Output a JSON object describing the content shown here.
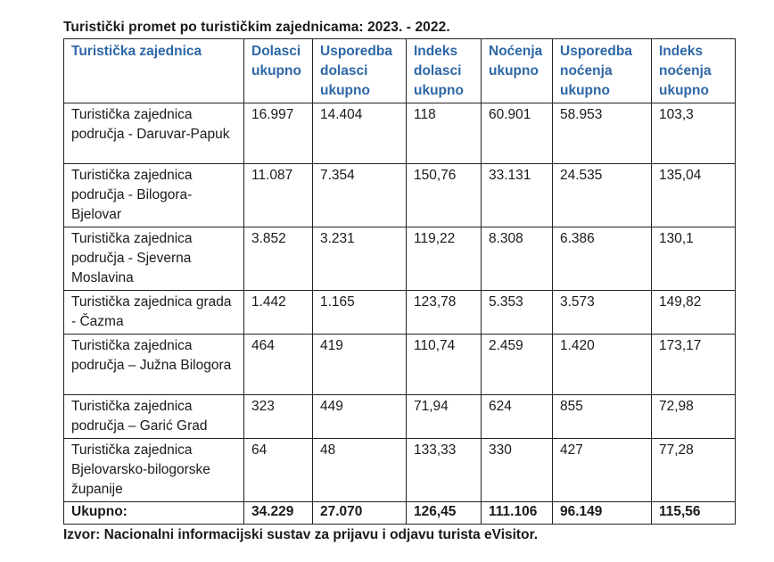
{
  "title": "Turistički promet po turističkim zajednicama: 2023. - 2022.",
  "table": {
    "headers": {
      "zajednica": "Turistička zajednica",
      "dolasci": "Dolasci ukupno",
      "usp_dolasci": "Usporedba dolasci ukupno",
      "idx_dolasci": "Indeks dolasci ukupno",
      "nocenja": "Noćenja ukupno",
      "usp_nocenja": "Usporedba noćenja ukupno",
      "idx_nocenja": "Indeks noćenja ukupno"
    },
    "rows": [
      {
        "name": "Turistička zajednica područja - Daruvar-Papuk",
        "dolasci": "16.997",
        "usp_dolasci": "14.404",
        "idx_dolasci": "118",
        "nocenja": "60.901",
        "usp_nocenja": "58.953",
        "idx_nocenja": "103,3"
      },
      {
        "name": "Turistička zajednica područja - Bilogora-Bjelovar",
        "dolasci": "11.087",
        "usp_dolasci": "7.354",
        "idx_dolasci": "150,76",
        "nocenja": "33.131",
        "usp_nocenja": "24.535",
        "idx_nocenja": "135,04"
      },
      {
        "name": "Turistička zajednica područja - Sjeverna Moslavina",
        "dolasci": "3.852",
        "usp_dolasci": "3.231",
        "idx_dolasci": "119,22",
        "nocenja": "8.308",
        "usp_nocenja": "6.386",
        "idx_nocenja": "130,1"
      },
      {
        "name": "Turistička zajednica grada - Čazma",
        "dolasci": "1.442",
        "usp_dolasci": "1.165",
        "idx_dolasci": "123,78",
        "nocenja": "5.353",
        "usp_nocenja": "3.573",
        "idx_nocenja": "149,82"
      },
      {
        "name": "Turistička zajednica područja – Južna Bilogora",
        "dolasci": "464",
        "usp_dolasci": "419",
        "idx_dolasci": "110,74",
        "nocenja": "2.459",
        "usp_nocenja": "1.420",
        "idx_nocenja": "173,17"
      },
      {
        "name": "Turistička zajednica područja – Garić Grad",
        "dolasci": "323",
        "usp_dolasci": "449",
        "idx_dolasci": "71,94",
        "nocenja": "624",
        "usp_nocenja": "855",
        "idx_nocenja": "72,98"
      },
      {
        "name": "Turistička zajednica Bjelovarsko-bilogorske županije",
        "dolasci": "64",
        "usp_dolasci": "48",
        "idx_dolasci": "133,33",
        "nocenja": "330",
        "usp_nocenja": "427",
        "idx_nocenja": "77,28"
      }
    ],
    "total": {
      "name": "Ukupno:",
      "dolasci": "34.229",
      "usp_dolasci": "27.070",
      "idx_dolasci": "126,45",
      "nocenja": "111.106",
      "usp_nocenja": "96.149",
      "idx_nocenja": "115,56"
    }
  },
  "source": "Izvor: Nacionalni informacijski sustav za prijavu i odjavu turista eVisitor.",
  "colors": {
    "header_text": "#2e67a6",
    "body_text": "#1a1a1a"
  }
}
